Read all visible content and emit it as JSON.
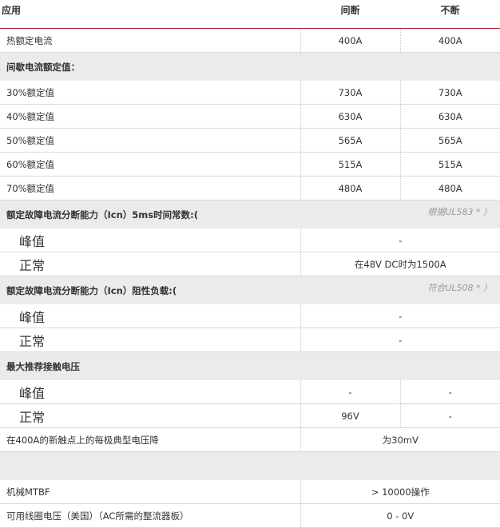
{
  "header": {
    "application": "应用",
    "intermittent": "间断",
    "continuous": "不断"
  },
  "rows": [
    {
      "type": "normal",
      "label": "热额定电流",
      "values": [
        "400A",
        "400A"
      ]
    },
    {
      "type": "section",
      "label": "间歇电流额定值：",
      "note": ""
    },
    {
      "type": "normal",
      "label": "30%额定值",
      "values": [
        "730A",
        "730A"
      ]
    },
    {
      "type": "normal",
      "label": "40%额定值",
      "values": [
        "630A",
        "630A"
      ]
    },
    {
      "type": "normal",
      "label": "50%额定值",
      "values": [
        "565A",
        "565A"
      ]
    },
    {
      "type": "normal",
      "label": "60%额定值",
      "values": [
        "515A",
        "515A"
      ]
    },
    {
      "type": "normal",
      "label": "70%额定值",
      "values": [
        "480A",
        "480A"
      ]
    },
    {
      "type": "section",
      "label": "额定故障电流分断能力（Icn）5ms时间常数:(",
      "note": "根据UL583 * ）"
    },
    {
      "type": "sub-merged",
      "label": "峰值",
      "value": "-"
    },
    {
      "type": "sub-merged",
      "label": "正常",
      "value": "在48V DC时为1500A"
    },
    {
      "type": "section",
      "label": "额定故障电流分断能力（Icn）阻性负载:(",
      "note": "符合UL508 * ）"
    },
    {
      "type": "sub-merged",
      "label": "峰值",
      "value": "-"
    },
    {
      "type": "sub-merged",
      "label": "正常",
      "value": "-"
    },
    {
      "type": "section",
      "label": "最大推荐接触电压",
      "note": ""
    },
    {
      "type": "sub",
      "label": "峰值",
      "values": [
        "-",
        "-"
      ]
    },
    {
      "type": "sub",
      "label": "正常",
      "values": [
        "96V",
        "-"
      ]
    },
    {
      "type": "merged",
      "label": "在400A的新触点上的每极典型电压降",
      "value": "为30mV"
    },
    {
      "type": "section",
      "label": "",
      "note": ""
    },
    {
      "type": "merged",
      "label": "机械MTBF",
      "value": "> 10000操作"
    },
    {
      "type": "merged",
      "label": "可用线圈电压（美国）（AC所需的整流器板）",
      "value": "0 - 0V"
    }
  ],
  "colors": {
    "header_rule": "#a31c37",
    "section_bg": "#ebebe9"
  }
}
